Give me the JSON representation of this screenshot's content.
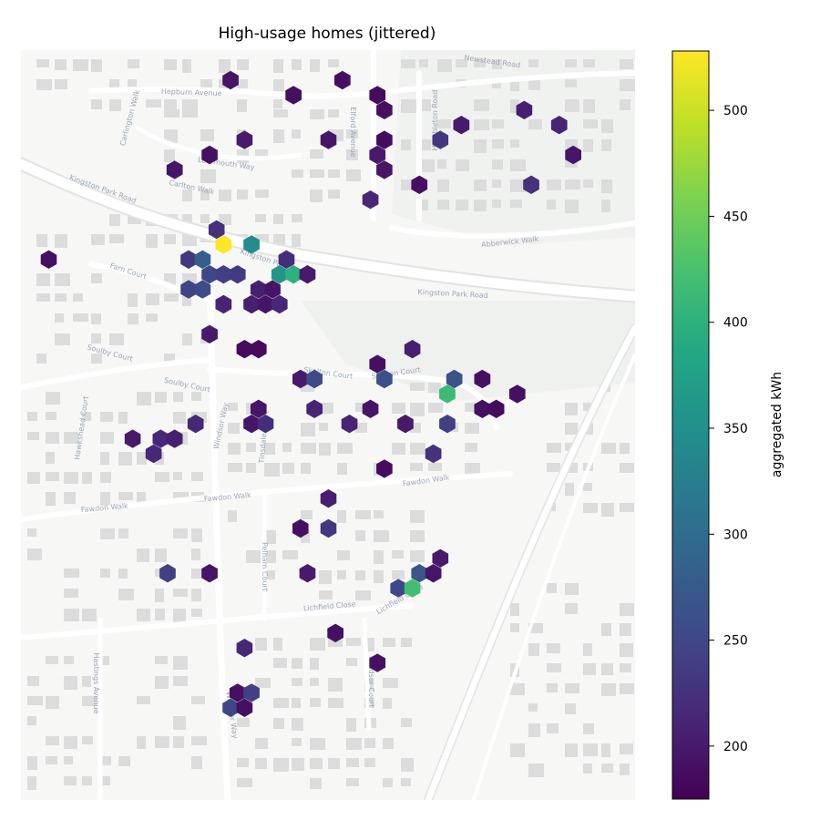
{
  "chart_data": {
    "type": "heatmap",
    "subtype": "hexbin",
    "title": "High-usage homes (jittered)",
    "colormap": "viridis",
    "colorbar": {
      "label": "aggregated kWh",
      "min": 175,
      "max": 528,
      "ticks": [
        "200",
        "250",
        "300",
        "350",
        "400",
        "450",
        "500"
      ]
    },
    "basemap_labels": [
      "Newstead Road",
      "Hepburn Avenue",
      "Carlington Walk",
      "Elford Avenue",
      "Humbleton Road",
      "Learmouth Way",
      "Kingston Park Road",
      "Carlton Walk",
      "Abberwick Walk",
      "Kingston Park Road",
      "Farn Court",
      "Kingston Park Road",
      "Soulby Court",
      "Soulby Court",
      "Skelton Court",
      "Skelton Court",
      "Hawkshead Court",
      "Windsor Way",
      "Tinsdale Court",
      "Fawdon Walk",
      "Fawdon Walk",
      "Fawdon Walk",
      "Pelham Court",
      "Lichfield Close",
      "Lichfield Close",
      "Hastings Avenue",
      "Windsor Way",
      "Windsor Court"
    ],
    "grid": false,
    "axes_visible": false,
    "cells": [
      {
        "col": 15,
        "row": 2,
        "value": 195
      },
      {
        "col": 23,
        "row": 2,
        "value": 190
      },
      {
        "col": 19,
        "row": 3,
        "value": 190
      },
      {
        "col": 25,
        "row": 3,
        "value": 185
      },
      {
        "col": 36,
        "row": 4,
        "value": 205
      },
      {
        "col": 26,
        "row": 4,
        "value": 190
      },
      {
        "col": 31,
        "row": 5,
        "value": 200
      },
      {
        "col": 38,
        "row": 5,
        "value": 210
      },
      {
        "col": 16,
        "row": 6,
        "value": 200
      },
      {
        "col": 22,
        "row": 6,
        "value": 195
      },
      {
        "col": 26,
        "row": 6,
        "value": 185
      },
      {
        "col": 30,
        "row": 6,
        "value": 230
      },
      {
        "col": 13,
        "row": 7,
        "value": 190
      },
      {
        "col": 25,
        "row": 7,
        "value": 200
      },
      {
        "col": 39,
        "row": 7,
        "value": 195
      },
      {
        "col": 11,
        "row": 8,
        "value": 195
      },
      {
        "col": 26,
        "row": 8,
        "value": 195
      },
      {
        "col": 28,
        "row": 9,
        "value": 190
      },
      {
        "col": 36,
        "row": 9,
        "value": 225
      },
      {
        "col": 25,
        "row": 10,
        "value": 215
      },
      {
        "col": 14,
        "row": 12,
        "value": 225
      },
      {
        "col": 14,
        "row": 13,
        "value": 528
      },
      {
        "col": 16,
        "row": 13,
        "value": 345
      },
      {
        "col": 2,
        "row": 14,
        "value": 190
      },
      {
        "col": 12,
        "row": 14,
        "value": 230
      },
      {
        "col": 13,
        "row": 14,
        "value": 280
      },
      {
        "col": 19,
        "row": 14,
        "value": 220
      },
      {
        "col": 13,
        "row": 15,
        "value": 250
      },
      {
        "col": 14,
        "row": 15,
        "value": 240
      },
      {
        "col": 15,
        "row": 15,
        "value": 235
      },
      {
        "col": 18,
        "row": 15,
        "value": 360
      },
      {
        "col": 19,
        "row": 15,
        "value": 400
      },
      {
        "col": 20,
        "row": 15,
        "value": 200
      },
      {
        "col": 12,
        "row": 16,
        "value": 245
      },
      {
        "col": 13,
        "row": 16,
        "value": 255
      },
      {
        "col": 17,
        "row": 16,
        "value": 205
      },
      {
        "col": 18,
        "row": 16,
        "value": 195
      },
      {
        "col": 14,
        "row": 17,
        "value": 210
      },
      {
        "col": 16,
        "row": 17,
        "value": 205
      },
      {
        "col": 17,
        "row": 17,
        "value": 195
      },
      {
        "col": 18,
        "row": 17,
        "value": 215
      },
      {
        "col": 13,
        "row": 19,
        "value": 200
      },
      {
        "col": 16,
        "row": 20,
        "value": 185
      },
      {
        "col": 17,
        "row": 20,
        "value": 185
      },
      {
        "col": 28,
        "row": 20,
        "value": 205
      },
      {
        "col": 25,
        "row": 21,
        "value": 190
      },
      {
        "col": 20,
        "row": 22,
        "value": 200
      },
      {
        "col": 21,
        "row": 22,
        "value": 255
      },
      {
        "col": 26,
        "row": 22,
        "value": 260
      },
      {
        "col": 31,
        "row": 22,
        "value": 265
      },
      {
        "col": 33,
        "row": 22,
        "value": 190
      },
      {
        "col": 30,
        "row": 23,
        "value": 415
      },
      {
        "col": 35,
        "row": 23,
        "value": 190
      },
      {
        "col": 17,
        "row": 24,
        "value": 195
      },
      {
        "col": 21,
        "row": 24,
        "value": 210
      },
      {
        "col": 25,
        "row": 24,
        "value": 195
      },
      {
        "col": 33,
        "row": 24,
        "value": 190
      },
      {
        "col": 34,
        "row": 24,
        "value": 185
      },
      {
        "col": 12,
        "row": 25,
        "value": 215
      },
      {
        "col": 16,
        "row": 25,
        "value": 195
      },
      {
        "col": 17,
        "row": 25,
        "value": 220
      },
      {
        "col": 23,
        "row": 25,
        "value": 210
      },
      {
        "col": 27,
        "row": 25,
        "value": 200
      },
      {
        "col": 30,
        "row": 25,
        "value": 240
      },
      {
        "col": 8,
        "row": 26,
        "value": 200
      },
      {
        "col": 10,
        "row": 26,
        "value": 215
      },
      {
        "col": 11,
        "row": 26,
        "value": 205
      },
      {
        "col": 9,
        "row": 27,
        "value": 215
      },
      {
        "col": 29,
        "row": 27,
        "value": 225
      },
      {
        "col": 26,
        "row": 28,
        "value": 185
      },
      {
        "col": 22,
        "row": 30,
        "value": 205
      },
      {
        "col": 20,
        "row": 32,
        "value": 190
      },
      {
        "col": 22,
        "row": 32,
        "value": 230
      },
      {
        "col": 30,
        "row": 34,
        "value": 200
      },
      {
        "col": 10,
        "row": 35,
        "value": 240
      },
      {
        "col": 13,
        "row": 35,
        "value": 195
      },
      {
        "col": 20,
        "row": 35,
        "value": 200
      },
      {
        "col": 28,
        "row": 35,
        "value": 270
      },
      {
        "col": 29,
        "row": 35,
        "value": 195
      },
      {
        "col": 27,
        "row": 36,
        "value": 250
      },
      {
        "col": 28,
        "row": 36,
        "value": 420
      },
      {
        "col": 22,
        "row": 39,
        "value": 190
      },
      {
        "col": 16,
        "row": 40,
        "value": 215
      },
      {
        "col": 25,
        "row": 41,
        "value": 190
      },
      {
        "col": 15,
        "row": 43,
        "value": 190
      },
      {
        "col": 16,
        "row": 43,
        "value": 240
      },
      {
        "col": 15,
        "row": 44,
        "value": 250
      },
      {
        "col": 16,
        "row": 44,
        "value": 190
      }
    ]
  }
}
